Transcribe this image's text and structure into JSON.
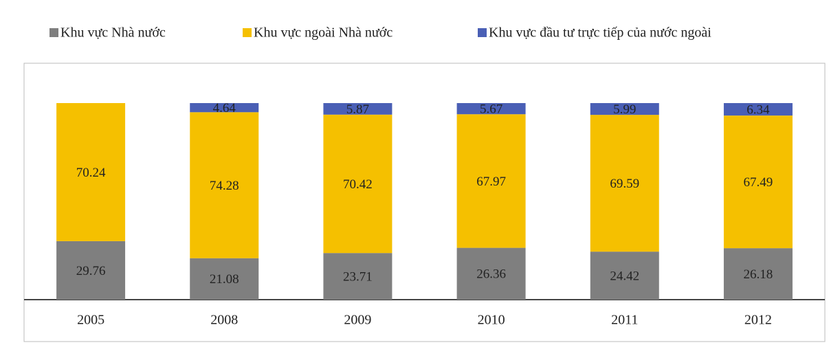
{
  "chart_data": {
    "type": "bar",
    "stacked": true,
    "categories": [
      "2005",
      "2008",
      "2009",
      "2010",
      "2011",
      "2012"
    ],
    "series": [
      {
        "name": "Khu vực Nhà nước",
        "color": "#7f7f7f",
        "values": [
          29.76,
          21.08,
          23.71,
          26.36,
          24.42,
          26.18
        ]
      },
      {
        "name": "Khu vực ngoài Nhà nước",
        "color": "#f5c000",
        "values": [
          70.24,
          74.28,
          70.42,
          67.97,
          69.59,
          67.49
        ]
      },
      {
        "name": "Khu vực đầu tư trực tiếp của nước ngoài",
        "color": "#4a5fb5",
        "values": [
          null,
          4.64,
          5.87,
          5.67,
          5.99,
          6.34
        ]
      }
    ],
    "legend": "top"
  }
}
